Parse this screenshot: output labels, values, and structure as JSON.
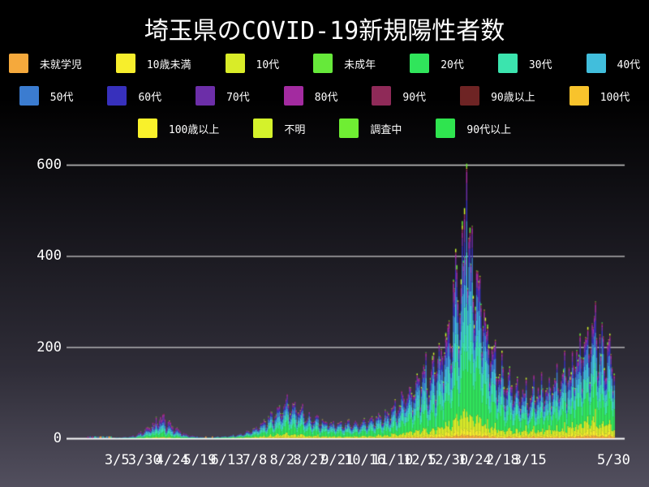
{
  "title": "埼玉県のCOVID-19新規陽性者数",
  "legend": {
    "rows": [
      [
        {
          "label": "未就学児",
          "color": "#F5A93C"
        },
        {
          "label": "10歳未満",
          "color": "#F7EE2C"
        },
        {
          "label": "10代",
          "color": "#D9EC28"
        },
        {
          "label": "未成年",
          "color": "#66E93A"
        },
        {
          "label": "20代",
          "color": "#30E55B"
        },
        {
          "label": "30代",
          "color": "#3BE4AE"
        },
        {
          "label": "40代",
          "color": "#41BEDC"
        }
      ],
      [
        {
          "label": "50代",
          "color": "#3B7CD0"
        },
        {
          "label": "60代",
          "color": "#3730BC"
        },
        {
          "label": "70代",
          "color": "#6C2EA8"
        },
        {
          "label": "80代",
          "color": "#A32BA0"
        },
        {
          "label": "90代",
          "color": "#8F2A58"
        },
        {
          "label": "90歳以上",
          "color": "#6E2424"
        },
        {
          "label": "100代",
          "color": "#F8C32C"
        }
      ],
      [
        {
          "label": "100歳以上",
          "color": "#F9F12B"
        },
        {
          "label": "不明",
          "color": "#D4F22B"
        },
        {
          "label": "調査中",
          "color": "#6FEE33"
        },
        {
          "label": "90代以上",
          "color": "#2FE44F"
        }
      ]
    ]
  },
  "chart_data": {
    "type": "area",
    "variant": "stacked-daily-age-groups",
    "title": "埼玉県のCOVID-19新規陽性者数",
    "xlabel": "",
    "ylabel": "",
    "ylim": [
      0,
      620
    ],
    "grid": true,
    "legend_position": "top",
    "gridline_color": "#CFCFCF",
    "axis_line_color": "#FFFFFF",
    "text_color": "#FFFFFF",
    "x_start_date": "2020-01-25",
    "x_end_date": "2021-06-09",
    "yticks": [
      {
        "label": "0",
        "value": 0
      },
      {
        "label": "200",
        "value": 200
      },
      {
        "label": "400",
        "value": 400
      },
      {
        "label": "600",
        "value": 600
      }
    ],
    "xticks": [
      {
        "label": "3/5",
        "date": "2020-03-05"
      },
      {
        "label": "3/30",
        "date": "2020-03-30"
      },
      {
        "label": "4/24",
        "date": "2020-04-24"
      },
      {
        "label": "5/19",
        "date": "2020-05-19"
      },
      {
        "label": "6/13",
        "date": "2020-06-13"
      },
      {
        "label": "7/8",
        "date": "2020-07-08"
      },
      {
        "label": "8/2",
        "date": "2020-08-02"
      },
      {
        "label": "8/27",
        "date": "2020-08-27"
      },
      {
        "label": "9/21",
        "date": "2020-09-21"
      },
      {
        "label": "10/16",
        "date": "2020-10-16"
      },
      {
        "label": "11/10",
        "date": "2020-11-10"
      },
      {
        "label": "12/5",
        "date": "2020-12-05"
      },
      {
        "label": "12/30",
        "date": "2020-12-30"
      },
      {
        "label": "1/24",
        "date": "2021-01-24"
      },
      {
        "label": "2/18",
        "date": "2021-02-18"
      },
      {
        "label": "3/15",
        "date": "2021-03-15"
      },
      {
        "label": "5/30",
        "date": "2021-05-30"
      }
    ],
    "series": [
      {
        "name": "未就学児",
        "color": "#F5A93C",
        "share": 0.018
      },
      {
        "name": "10歳未満",
        "color": "#F7EE2C",
        "share": 0.028
      },
      {
        "name": "10代",
        "color": "#D9EC28",
        "share": 0.075
      },
      {
        "name": "未成年",
        "color": "#66E93A",
        "share": 0.004
      },
      {
        "name": "20代",
        "color": "#30E55B",
        "share": 0.255
      },
      {
        "name": "30代",
        "color": "#3BE4AE",
        "share": 0.165
      },
      {
        "name": "40代",
        "color": "#41BEDC",
        "share": 0.148
      },
      {
        "name": "50代",
        "color": "#3B7CD0",
        "share": 0.118
      },
      {
        "name": "60代",
        "color": "#3730BC",
        "share": 0.062
      },
      {
        "name": "70代",
        "color": "#6C2EA8",
        "share": 0.052
      },
      {
        "name": "80代",
        "color": "#A32BA0",
        "share": 0.038
      },
      {
        "name": "90代",
        "color": "#8F2A58",
        "share": 0.014
      },
      {
        "name": "90歳以上",
        "color": "#6E2424",
        "share": 0.002
      },
      {
        "name": "100代",
        "color": "#F8C32C",
        "share": 0.001
      },
      {
        "name": "100歳以上",
        "color": "#F9F12B",
        "share": 0.001
      },
      {
        "name": "不明",
        "color": "#D4F22B",
        "share": 0.007
      },
      {
        "name": "調査中",
        "color": "#6FEE33",
        "share": 0.007
      },
      {
        "name": "90代以上",
        "color": "#2FE44F",
        "share": 0.002
      }
    ],
    "envelope_daily_totals": [
      [
        "2020-02-05",
        1
      ],
      [
        "2020-02-20",
        1
      ],
      [
        "2020-03-01",
        2
      ],
      [
        "2020-03-10",
        3
      ],
      [
        "2020-03-20",
        6
      ],
      [
        "2020-03-28",
        15
      ],
      [
        "2020-04-05",
        30
      ],
      [
        "2020-04-12",
        45
      ],
      [
        "2020-04-18",
        40
      ],
      [
        "2020-04-25",
        25
      ],
      [
        "2020-05-05",
        10
      ],
      [
        "2020-05-15",
        4
      ],
      [
        "2020-05-25",
        2
      ],
      [
        "2020-06-05",
        4
      ],
      [
        "2020-06-15",
        6
      ],
      [
        "2020-06-25",
        10
      ],
      [
        "2020-07-05",
        20
      ],
      [
        "2020-07-15",
        35
      ],
      [
        "2020-07-25",
        55
      ],
      [
        "2020-08-01",
        70
      ],
      [
        "2020-08-08",
        75
      ],
      [
        "2020-08-15",
        65
      ],
      [
        "2020-08-25",
        50
      ],
      [
        "2020-09-05",
        40
      ],
      [
        "2020-09-15",
        35
      ],
      [
        "2020-09-25",
        32
      ],
      [
        "2020-10-05",
        35
      ],
      [
        "2020-10-15",
        38
      ],
      [
        "2020-10-25",
        42
      ],
      [
        "2020-11-05",
        55
      ],
      [
        "2020-11-15",
        75
      ],
      [
        "2020-11-25",
        110
      ],
      [
        "2020-12-05",
        130
      ],
      [
        "2020-12-15",
        150
      ],
      [
        "2020-12-25",
        185
      ],
      [
        "2020-12-31",
        270
      ],
      [
        "2021-01-07",
        350
      ],
      [
        "2021-01-12",
        400
      ],
      [
        "2021-01-16",
        440
      ],
      [
        "2021-01-20",
        390
      ],
      [
        "2021-01-25",
        330
      ],
      [
        "2021-02-01",
        260
      ],
      [
        "2021-02-08",
        200
      ],
      [
        "2021-02-15",
        160
      ],
      [
        "2021-02-22",
        130
      ],
      [
        "2021-03-01",
        110
      ],
      [
        "2021-03-10",
        100
      ],
      [
        "2021-03-20",
        105
      ],
      [
        "2021-04-01",
        115
      ],
      [
        "2021-04-10",
        130
      ],
      [
        "2021-04-20",
        160
      ],
      [
        "2021-05-01",
        200
      ],
      [
        "2021-05-08",
        240
      ],
      [
        "2021-05-13",
        230
      ],
      [
        "2021-05-18",
        215
      ],
      [
        "2021-05-23",
        200
      ],
      [
        "2021-05-30",
        170
      ]
    ],
    "weekly_pattern": [
      0.6,
      0.78,
      0.95,
      1.02,
      1.08,
      1.15,
      0.88
    ],
    "peak": {
      "date": "2021-01-16",
      "boost": 1.37,
      "approx_max": 600
    }
  }
}
